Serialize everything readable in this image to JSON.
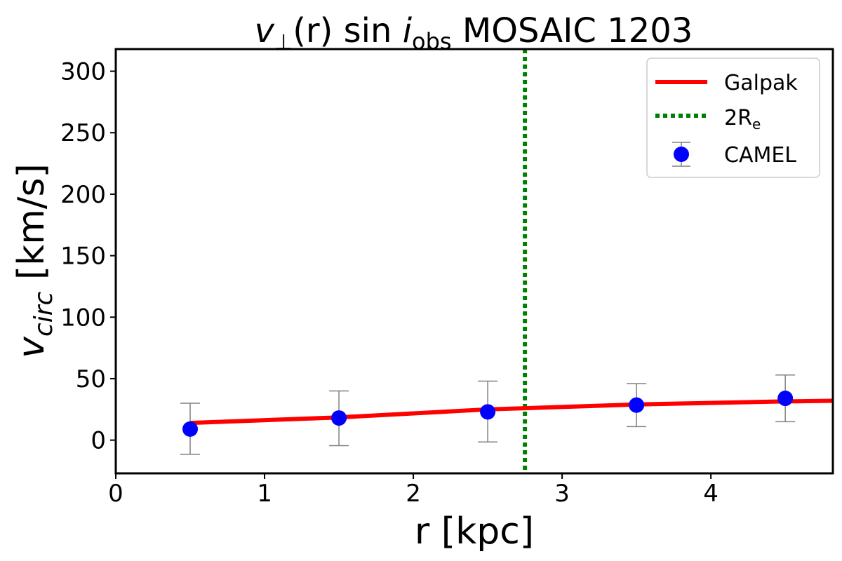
{
  "chart_data": {
    "type": "line",
    "title_parts": {
      "v": "v",
      "perp": "⊥",
      "r_arg": "(r)",
      "sin": "sin",
      "i": "i",
      "obs": "obs",
      "rest": "MOSAIC 1203"
    },
    "xlabel": "r [kpc]",
    "ylabel_parts": {
      "v": "v",
      "sub": "circ",
      "unit": "[km/s]"
    },
    "xlim": [
      0,
      4.82
    ],
    "ylim": [
      -27,
      318
    ],
    "xticks": [
      0,
      1,
      2,
      3,
      4
    ],
    "yticks": [
      0,
      50,
      100,
      150,
      200,
      250,
      300
    ],
    "grid": false,
    "legend_position": "top-right",
    "series": [
      {
        "name": "Galpak",
        "kind": "line",
        "color": "#ff0000",
        "x": [
          0.5,
          1.5,
          2.5,
          3.5,
          4.5,
          4.82
        ],
        "y": [
          14,
          18.5,
          25,
          29,
          31.5,
          32
        ]
      },
      {
        "name": "CAMEL",
        "kind": "errorbar",
        "color": "#0000ff",
        "errcolor": "#808080",
        "x": [
          0.5,
          1.5,
          2.5,
          3.5,
          4.5
        ],
        "y": [
          9,
          18,
          23,
          28.5,
          34
        ],
        "ylow": [
          -11.5,
          -4.5,
          -1.5,
          11,
          15
        ],
        "yhigh": [
          30,
          40,
          48,
          46,
          53
        ]
      }
    ],
    "vlines": [
      {
        "name_parts": {
          "main": "2R",
          "sub": "e"
        },
        "x": 2.75,
        "color": "#008000",
        "style": "dotted"
      }
    ]
  }
}
